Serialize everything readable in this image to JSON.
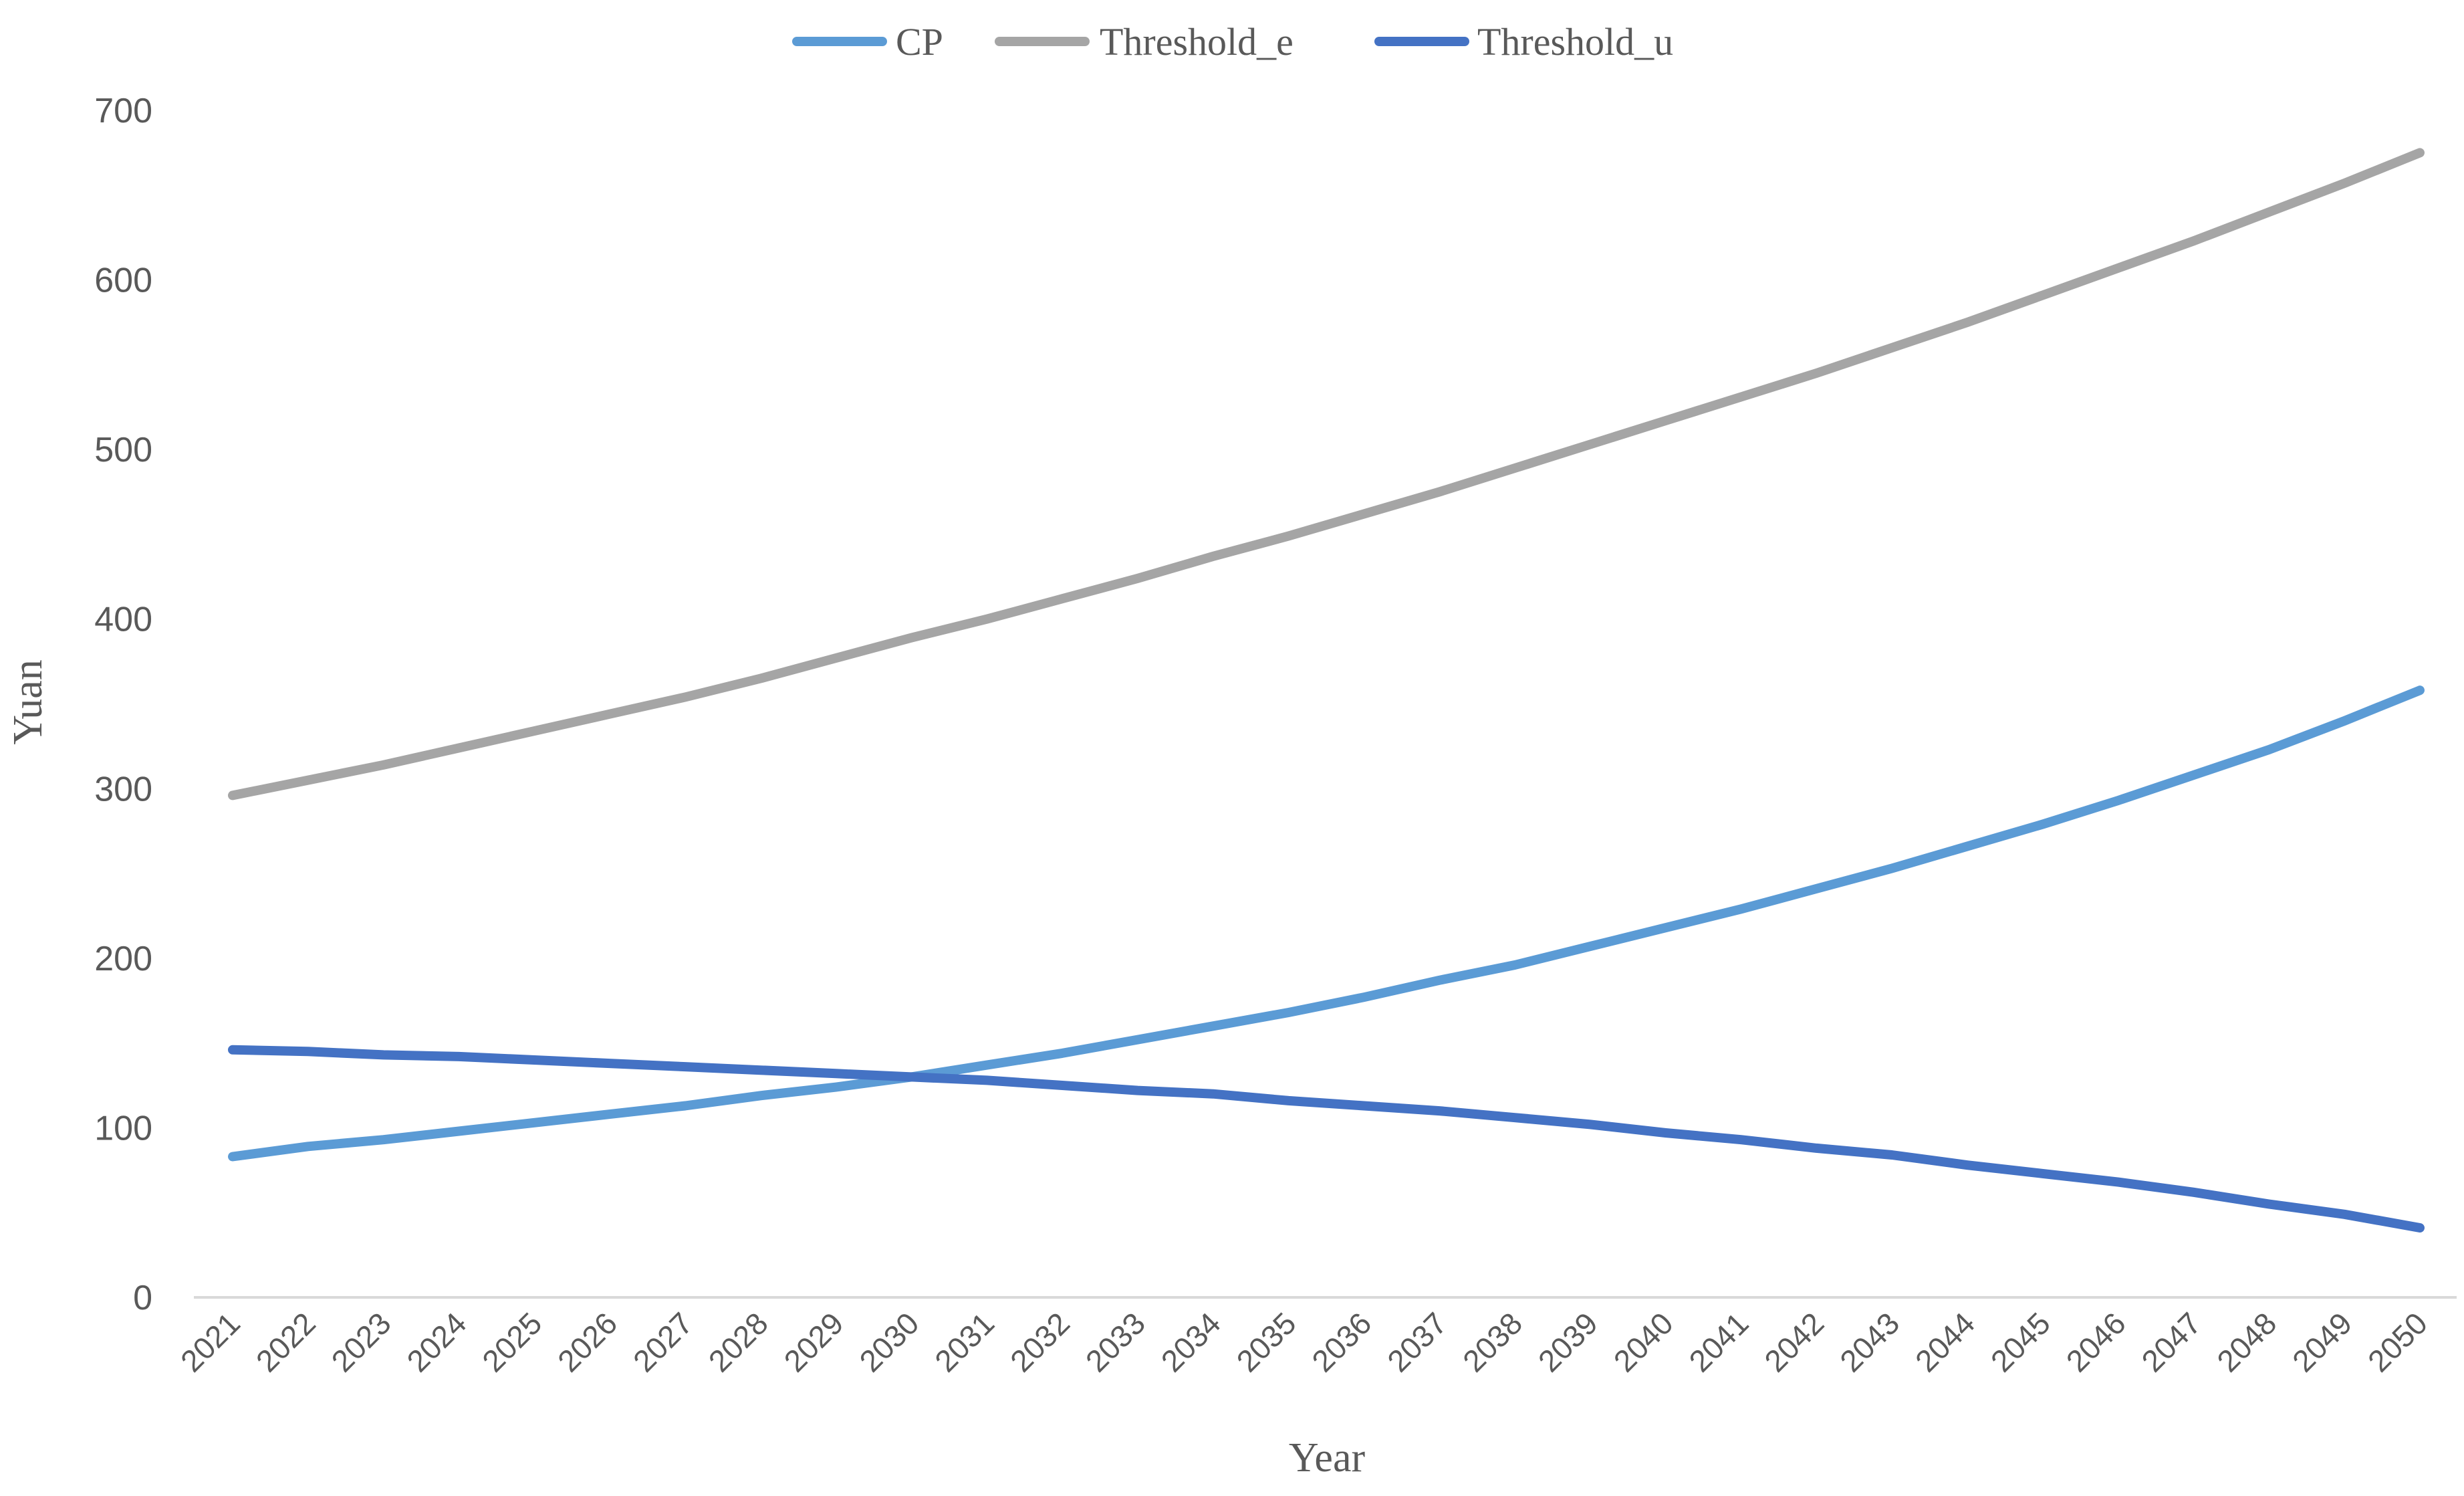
{
  "chart_data": {
    "type": "line",
    "title": "",
    "xlabel": "Year",
    "ylabel": "Yuan",
    "ylim": [
      0,
      700
    ],
    "yticks": [
      "0",
      "100",
      "200",
      "300",
      "400",
      "500",
      "600",
      "700"
    ],
    "grid": false,
    "legend_position": "top-center",
    "categories": [
      "2021",
      "2022",
      "2023",
      "2024",
      "2025",
      "2026",
      "2027",
      "2028",
      "2029",
      "2030",
      "2031",
      "2032",
      "2033",
      "2034",
      "2035",
      "2036",
      "2037",
      "2038",
      "2039",
      "2040",
      "2041",
      "2042",
      "2043",
      "2044",
      "2045",
      "2046",
      "2047",
      "2048",
      "2049",
      "2050"
    ],
    "series": [
      {
        "name": "CP",
        "color": "#5B9BD5",
        "values": [
          83,
          89,
          93,
          98,
          103,
          108,
          113,
          119,
          124,
          130,
          137,
          144,
          152,
          160,
          168,
          177,
          187,
          196,
          207,
          218,
          229,
          241,
          253,
          266,
          279,
          293,
          308,
          323,
          340,
          358
        ]
      },
      {
        "name": "Threshold_e",
        "color": "#A5A5A5",
        "values": [
          296,
          305,
          314,
          324,
          334,
          344,
          354,
          365,
          377,
          389,
          400,
          412,
          424,
          437,
          449,
          462,
          475,
          489,
          503,
          517,
          531,
          545,
          560,
          575,
          591,
          607,
          623,
          640,
          657,
          675
        ]
      },
      {
        "name": "Threshold_u",
        "color": "#4472C4",
        "values": [
          146,
          145,
          143,
          142,
          140,
          138,
          136,
          134,
          132,
          130,
          128,
          125,
          122,
          120,
          116,
          113,
          110,
          106,
          102,
          97,
          93,
          88,
          84,
          78,
          73,
          68,
          62,
          55,
          49,
          41
        ]
      }
    ]
  }
}
